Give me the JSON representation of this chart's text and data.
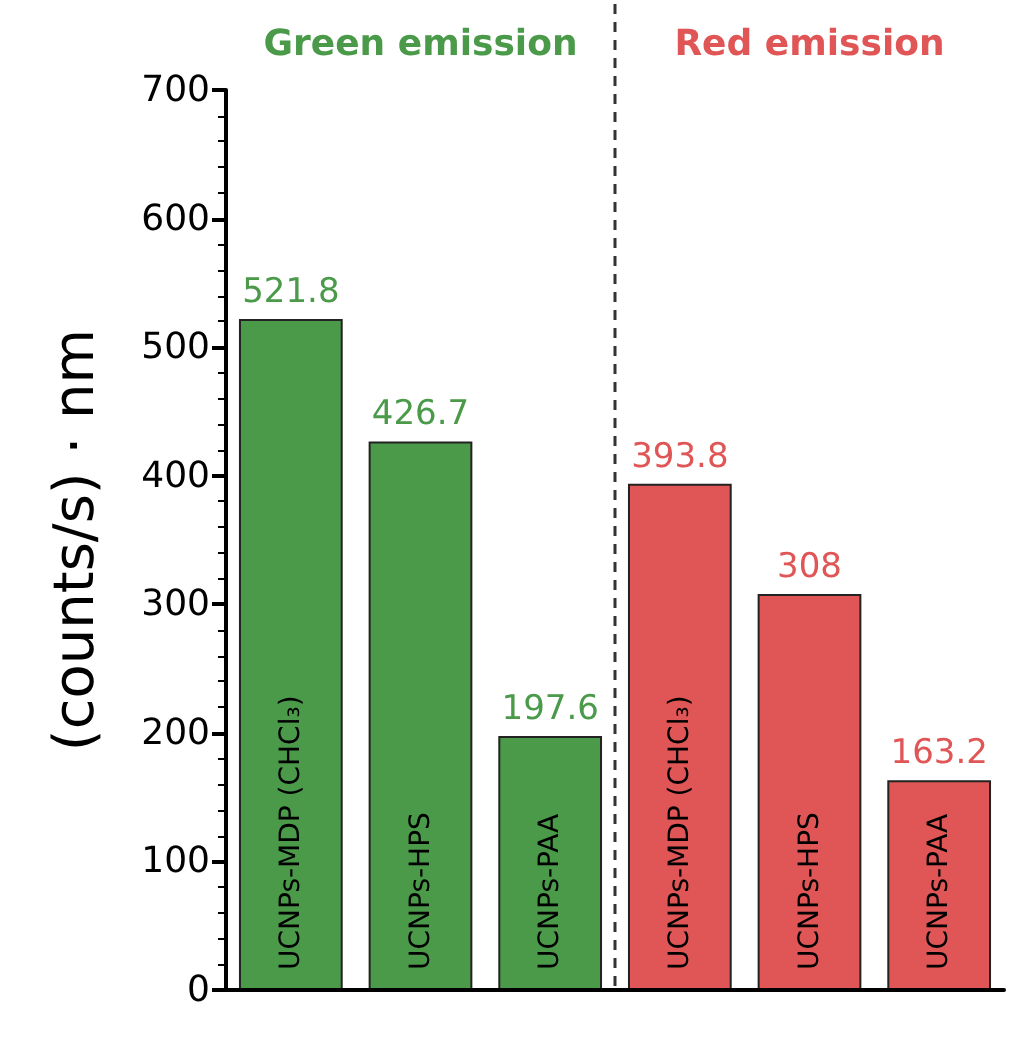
{
  "chart_data": {
    "type": "bar",
    "ylabel": "(counts/s) · nm",
    "categories": [
      "UCNPs-MDP (CHCl₃)",
      "UCNPs-HPS",
      "UCNPs-PAA",
      "UCNPs-MDP (CHCl₃)",
      "UCNPs-HPS",
      "UCNPs-PAA"
    ],
    "series": [
      {
        "name": "Green emission",
        "color": "#4a9a4a",
        "values": [
          521.8,
          426.7,
          197.6,
          null,
          null,
          null
        ]
      },
      {
        "name": "Red emission",
        "color": "#e05555",
        "values": [
          null,
          null,
          null,
          393.8,
          308,
          163.2
        ]
      }
    ],
    "ylim": [
      0,
      700
    ],
    "yticks": [
      0,
      100,
      200,
      300,
      400,
      500,
      600,
      700
    ],
    "data_labels": true,
    "grid": false,
    "legend": "top"
  }
}
